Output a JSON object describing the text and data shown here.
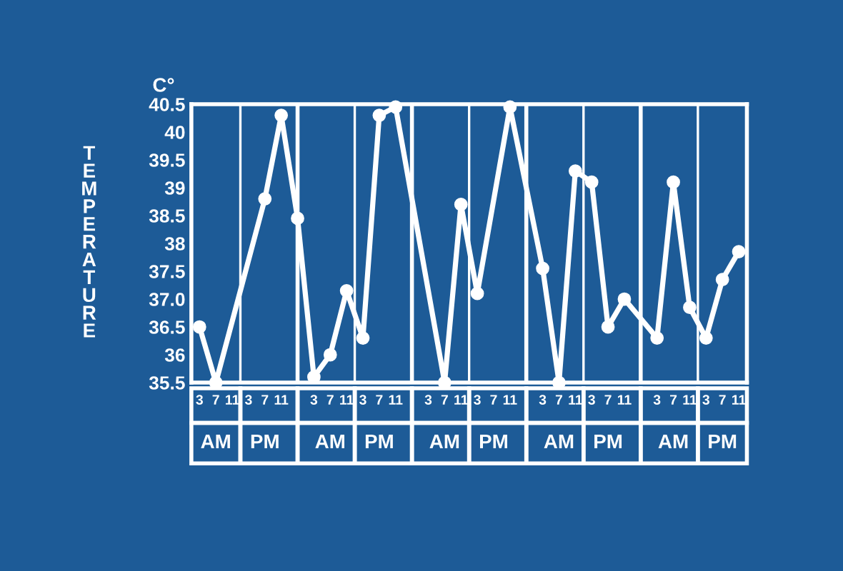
{
  "chart_data": {
    "type": "line",
    "ylabel": "TEMPERATURE",
    "color": "#ffffff",
    "annotations": [
      "C°",
      "AM",
      "PM",
      "AM",
      "PM",
      "AM",
      "PM",
      "AM",
      "PM",
      "AM",
      "PM"
    ],
    "categories": [
      "3",
      "7",
      "11",
      "3",
      "7",
      "11",
      null,
      "3",
      "7",
      "11",
      "3",
      "7",
      "11",
      null,
      "3",
      "7",
      "11",
      "3",
      "7",
      "11",
      null,
      "3",
      "7",
      "11",
      "3",
      "7",
      "11",
      null,
      "3",
      "7",
      "11",
      "3",
      "7",
      "11"
    ],
    "series": [
      {
        "color": "#ffffff",
        "values": [
          36.5,
          35.5,
          null,
          null,
          38.8,
          40.3,
          38.45,
          35.6,
          36.0,
          37.15,
          36.3,
          40.3,
          40.45,
          null,
          null,
          35.5,
          38.7,
          37.1,
          null,
          40.45,
          null,
          37.55,
          35.5,
          39.3,
          39.1,
          36.5,
          37.0,
          null,
          36.3,
          39.1,
          36.85,
          36.3,
          37.35,
          37.85
        ]
      }
    ],
    "ylim": [
      35.5,
      40.5
    ],
    "yticks": [
      35.5,
      {
        "value": 36,
        "label": "36"
      },
      36.5,
      {
        "value": 37,
        "label": "37.0"
      },
      37.5,
      {
        "value": 38,
        "label": "38"
      },
      38.5,
      {
        "value": 39,
        "label": "39"
      },
      39.5,
      {
        "value": 40,
        "label": "40"
      },
      40.5
    ],
    "marker": "circle",
    "line_style": "solid",
    "grid": "x",
    "legend": false
  }
}
